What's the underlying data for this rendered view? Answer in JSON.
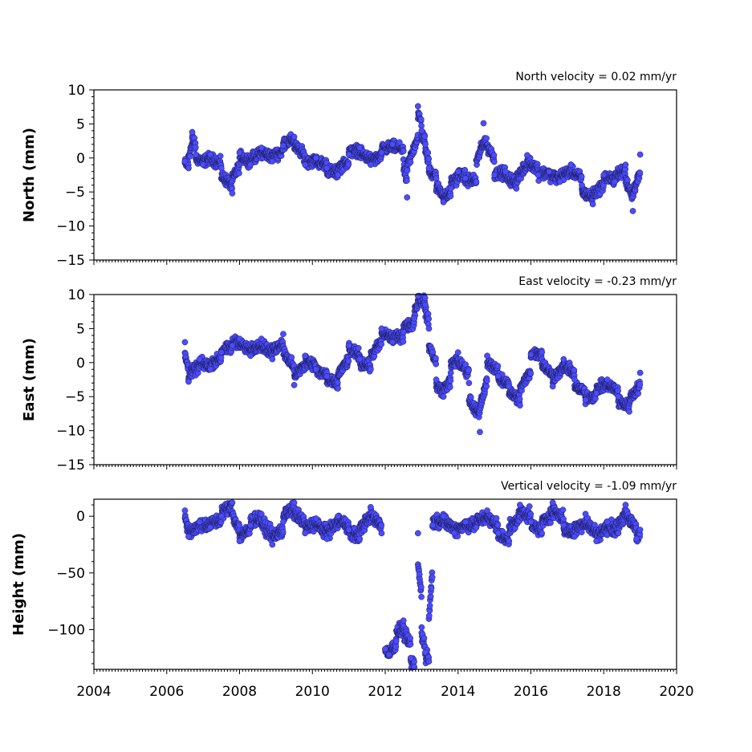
{
  "colors": {
    "marker_fill": "#4b4bff",
    "marker_edge": "#1c1c55"
  },
  "chart_data": [
    {
      "type": "scatter",
      "title": "North velocity = 0.02 mm/yr",
      "xlabel": "",
      "ylabel": "North (mm)",
      "xlim": [
        2004,
        2020
      ],
      "ylim": [
        -15,
        10
      ],
      "yticks": [
        -15,
        -10,
        -5,
        0,
        5,
        10
      ],
      "xticks": [
        2004,
        2006,
        2008,
        2010,
        2012,
        2014,
        2016,
        2018,
        2020
      ],
      "x_tick_labels_shown": false,
      "grid": false,
      "series": [
        {
          "points": [
            [
              2006.5,
              -0.5
            ],
            [
              2006.6,
              -1.5
            ],
            [
              2006.7,
              3.8
            ],
            [
              2006.8,
              0.5
            ],
            [
              2007.0,
              -1.0
            ],
            [
              2007.2,
              0.5
            ],
            [
              2007.5,
              -1.5
            ],
            [
              2007.8,
              -5.2
            ],
            [
              2008.0,
              0.8
            ],
            [
              2008.3,
              -1.0
            ],
            [
              2008.6,
              1.5
            ],
            [
              2008.9,
              -0.5
            ],
            [
              2009.2,
              1.8
            ],
            [
              2009.5,
              3.1
            ],
            [
              2009.8,
              -1.0
            ],
            [
              2010.1,
              0.0
            ],
            [
              2010.4,
              -1.5
            ],
            [
              2010.7,
              -2.5
            ],
            [
              2011.0,
              0.5
            ],
            [
              2011.3,
              1.5
            ],
            [
              2011.6,
              -1.0
            ],
            [
              2011.9,
              0.8
            ],
            [
              2012.2,
              2.0
            ],
            [
              2012.5,
              1.0
            ],
            [
              2012.6,
              -5.8
            ],
            [
              2012.9,
              7.6
            ],
            [
              2013.0,
              4.0
            ],
            [
              2013.1,
              2.0
            ],
            [
              2013.2,
              -1.5
            ],
            [
              2013.4,
              -3.0
            ],
            [
              2013.6,
              -6.5
            ],
            [
              2013.8,
              -4.5
            ],
            [
              2014.0,
              -2.0
            ],
            [
              2014.2,
              -3.0
            ],
            [
              2014.5,
              -3.5
            ],
            [
              2014.7,
              5.1
            ],
            [
              2015.0,
              -2.5
            ],
            [
              2015.3,
              -2.0
            ],
            [
              2015.6,
              -4.5
            ],
            [
              2015.9,
              0.4
            ],
            [
              2016.2,
              -2.5
            ],
            [
              2016.5,
              -2.0
            ],
            [
              2016.8,
              -3.5
            ],
            [
              2017.1,
              -1.0
            ],
            [
              2017.4,
              -4.0
            ],
            [
              2017.7,
              -6.8
            ],
            [
              2018.0,
              -2.5
            ],
            [
              2018.3,
              -3.5
            ],
            [
              2018.6,
              -1.0
            ],
            [
              2018.8,
              -7.8
            ],
            [
              2019.0,
              0.5
            ]
          ]
        }
      ]
    },
    {
      "type": "scatter",
      "title": "East velocity = -0.23 mm/yr",
      "xlabel": "",
      "ylabel": "East (mm)",
      "xlim": [
        2004,
        2020
      ],
      "ylim": [
        -15,
        10
      ],
      "yticks": [
        -15,
        -10,
        -5,
        0,
        5,
        10
      ],
      "xticks": [
        2004,
        2006,
        2008,
        2010,
        2012,
        2014,
        2016,
        2018,
        2020
      ],
      "x_tick_labels_shown": false,
      "grid": false,
      "series": [
        {
          "points": [
            [
              2006.5,
              3.0
            ],
            [
              2006.6,
              -2.8
            ],
            [
              2006.9,
              0.5
            ],
            [
              2007.2,
              -1.0
            ],
            [
              2007.5,
              1.5
            ],
            [
              2007.8,
              2.5
            ],
            [
              2008.0,
              3.5
            ],
            [
              2008.3,
              1.0
            ],
            [
              2008.6,
              3.5
            ],
            [
              2008.9,
              0.5
            ],
            [
              2009.2,
              4.2
            ],
            [
              2009.5,
              -3.3
            ],
            [
              2009.8,
              1.0
            ],
            [
              2010.1,
              -1.0
            ],
            [
              2010.4,
              -2.0
            ],
            [
              2010.7,
              -3.8
            ],
            [
              2011.0,
              2.5
            ],
            [
              2011.3,
              0.5
            ],
            [
              2011.6,
              -1.0
            ],
            [
              2011.9,
              5.0
            ],
            [
              2012.2,
              3.0
            ],
            [
              2012.5,
              4.5
            ],
            [
              2012.8,
              6.5
            ],
            [
              2012.9,
              9.8
            ],
            [
              2013.1,
              8.5
            ],
            [
              2013.2,
              5.0
            ],
            [
              2013.4,
              -2.5
            ],
            [
              2013.6,
              -5.0
            ],
            [
              2013.8,
              -1.5
            ],
            [
              2014.0,
              1.5
            ],
            [
              2014.3,
              -3.0
            ],
            [
              2014.6,
              -10.2
            ],
            [
              2014.8,
              1.0
            ],
            [
              2015.1,
              -2.0
            ],
            [
              2015.4,
              -3.5
            ],
            [
              2015.7,
              -6.3
            ],
            [
              2016.0,
              1.2
            ],
            [
              2016.3,
              1.5
            ],
            [
              2016.6,
              -3.5
            ],
            [
              2016.9,
              0.5
            ],
            [
              2017.2,
              -2.5
            ],
            [
              2017.5,
              -5.5
            ],
            [
              2017.8,
              -4.5
            ],
            [
              2018.1,
              -2.5
            ],
            [
              2018.4,
              -5.0
            ],
            [
              2018.7,
              -7.2
            ],
            [
              2019.0,
              -1.5
            ]
          ]
        }
      ]
    },
    {
      "type": "scatter",
      "title": "Vertical velocity = -1.09 mm/yr",
      "xlabel": "",
      "ylabel": "Height (mm)",
      "xlim": [
        2004,
        2020
      ],
      "ylim": [
        -135,
        15
      ],
      "yticks": [
        -100,
        -50,
        0
      ],
      "xticks": [
        2004,
        2006,
        2008,
        2010,
        2012,
        2014,
        2016,
        2018,
        2020
      ],
      "x_tick_labels_shown": true,
      "grid": false,
      "series": [
        {
          "points": [
            [
              2006.5,
              5.0
            ],
            [
              2006.6,
              -18.0
            ],
            [
              2006.9,
              -5.0
            ],
            [
              2007.2,
              -10.0
            ],
            [
              2007.5,
              0.0
            ],
            [
              2007.8,
              12.0
            ],
            [
              2008.0,
              -22.0
            ],
            [
              2008.3,
              -8.0
            ],
            [
              2008.6,
              2.0
            ],
            [
              2008.9,
              -25.0
            ],
            [
              2009.2,
              -5.0
            ],
            [
              2009.5,
              12.0
            ],
            [
              2009.8,
              -15.0
            ],
            [
              2010.1,
              -2.0
            ],
            [
              2010.4,
              -20.0
            ],
            [
              2010.7,
              0.0
            ],
            [
              2011.0,
              -12.0
            ],
            [
              2011.3,
              -20.0
            ],
            [
              2011.6,
              8.0
            ],
            [
              2011.9,
              -15.0
            ],
            [
              2012.0,
              -117.0
            ],
            [
              2012.1,
              -122.0
            ],
            [
              2012.3,
              -110.0
            ],
            [
              2012.5,
              -92.0
            ],
            [
              2012.7,
              -125.0
            ],
            [
              2012.8,
              -133.0
            ],
            [
              2012.9,
              -15.0
            ],
            [
              2013.0,
              -98.0
            ],
            [
              2013.1,
              -120.0
            ],
            [
              2013.2,
              -128.0
            ],
            [
              2013.3,
              -8.0
            ],
            [
              2013.6,
              0.0
            ],
            [
              2013.9,
              -15.0
            ],
            [
              2014.2,
              -5.0
            ],
            [
              2014.5,
              -10.0
            ],
            [
              2014.8,
              5.0
            ],
            [
              2015.1,
              -15.0
            ],
            [
              2015.4,
              -22.0
            ],
            [
              2015.7,
              10.0
            ],
            [
              2016.0,
              -5.0
            ],
            [
              2016.3,
              -15.0
            ],
            [
              2016.6,
              12.0
            ],
            [
              2016.9,
              -8.0
            ],
            [
              2017.2,
              -18.0
            ],
            [
              2017.5,
              2.0
            ],
            [
              2017.8,
              -22.0
            ],
            [
              2018.1,
              -5.0
            ],
            [
              2018.4,
              -15.0
            ],
            [
              2018.6,
              10.0
            ],
            [
              2018.9,
              -20.0
            ],
            [
              2019.0,
              -12.0
            ]
          ]
        }
      ]
    }
  ]
}
